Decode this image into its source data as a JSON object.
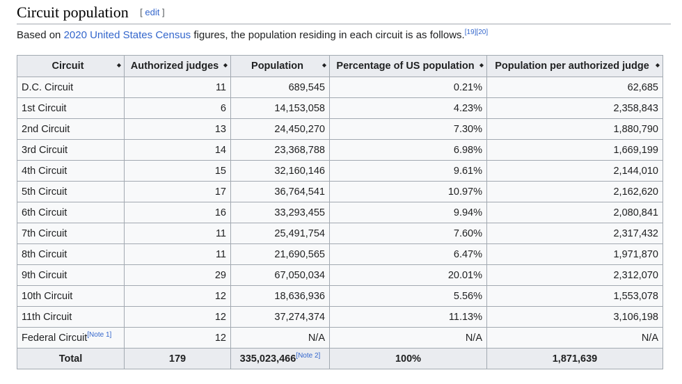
{
  "section": {
    "title": "Circuit population",
    "edit_open": "[",
    "edit_label": "edit",
    "edit_close": "]"
  },
  "intro": {
    "before": "Based on ",
    "link": "2020 United States Census",
    "after": " figures, the population residing in each circuit is as follows.",
    "refs": [
      "[19]",
      "[20]"
    ]
  },
  "table": {
    "headers": [
      "Circuit",
      "Authorized judges",
      "Population",
      "Percentage of US population",
      "Population per authorized judge"
    ],
    "rows": [
      {
        "circuit": "D.C. Circuit",
        "judges": "11",
        "population": "689,545",
        "percent": "0.21%",
        "per_judge": "62,685"
      },
      {
        "circuit": "1st Circuit",
        "judges": "6",
        "population": "14,153,058",
        "percent": "4.23%",
        "per_judge": "2,358,843"
      },
      {
        "circuit": "2nd Circuit",
        "judges": "13",
        "population": "24,450,270",
        "percent": "7.30%",
        "per_judge": "1,880,790"
      },
      {
        "circuit": "3rd Circuit",
        "judges": "14",
        "population": "23,368,788",
        "percent": "6.98%",
        "per_judge": "1,669,199"
      },
      {
        "circuit": "4th Circuit",
        "judges": "15",
        "population": "32,160,146",
        "percent": "9.61%",
        "per_judge": "2,144,010"
      },
      {
        "circuit": "5th Circuit",
        "judges": "17",
        "population": "36,764,541",
        "percent": "10.97%",
        "per_judge": "2,162,620"
      },
      {
        "circuit": "6th Circuit",
        "judges": "16",
        "population": "33,293,455",
        "percent": "9.94%",
        "per_judge": "2,080,841"
      },
      {
        "circuit": "7th Circuit",
        "judges": "11",
        "population": "25,491,754",
        "percent": "7.60%",
        "per_judge": "2,317,432"
      },
      {
        "circuit": "8th Circuit",
        "judges": "11",
        "population": "21,690,565",
        "percent": "6.47%",
        "per_judge": "1,971,870"
      },
      {
        "circuit": "9th Circuit",
        "judges": "29",
        "population": "67,050,034",
        "percent": "20.01%",
        "per_judge": "2,312,070"
      },
      {
        "circuit": "10th Circuit",
        "judges": "12",
        "population": "18,636,936",
        "percent": "5.56%",
        "per_judge": "1,553,078"
      },
      {
        "circuit": "11th Circuit",
        "judges": "12",
        "population": "37,274,374",
        "percent": "11.13%",
        "per_judge": "3,106,198"
      }
    ],
    "federal": {
      "circuit": "Federal Circuit",
      "note": "[Note 1]",
      "judges": "12",
      "population": "N/A",
      "percent": "N/A",
      "per_judge": "N/A"
    },
    "total": {
      "label": "Total",
      "judges": "179",
      "population": "335,023,466",
      "note": "[Note 2]",
      "percent": "100%",
      "per_judge": "1,871,639"
    }
  }
}
